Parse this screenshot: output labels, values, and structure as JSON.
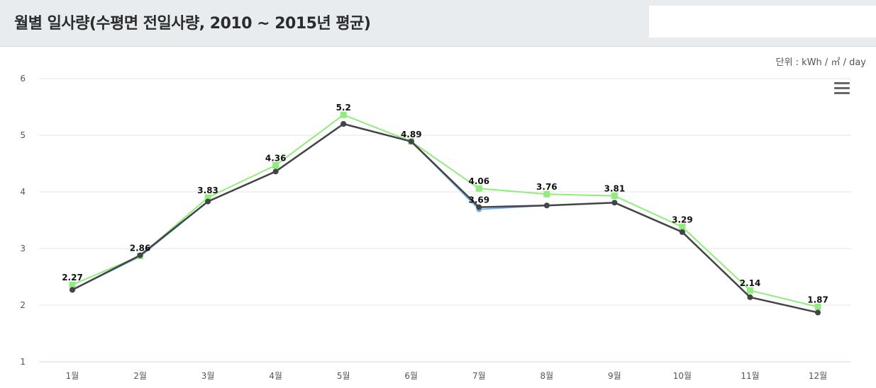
{
  "header": {
    "title": "월별 일사량(수평면 전일사량, 2010 ~ 2015년 평균)"
  },
  "unit_label": "단위 : kWh / ㎡ / day",
  "menu": {
    "icon": "hamburger-menu-icon"
  },
  "colors": {
    "grid": "#e6e6e6",
    "axis_line": "#ccd6eb",
    "series_dark": "#434348",
    "series_blue": "#7cb5ec",
    "series_green": "#90ed7d"
  },
  "chart_data": {
    "type": "line",
    "categories": [
      "1월",
      "2월",
      "3월",
      "4월",
      "5월",
      "6월",
      "7월",
      "8월",
      "9월",
      "10월",
      "11월",
      "12월"
    ],
    "series": [
      {
        "values": [
          2.27,
          2.86,
          3.83,
          4.36,
          5.2,
          4.89,
          3.69,
          3.76,
          3.81,
          3.29,
          2.14,
          1.87
        ],
        "color": "#7cb5ec",
        "marker": "circle"
      },
      {
        "values": [
          2.36,
          2.87,
          3.9,
          4.47,
          5.36,
          4.89,
          4.06,
          3.96,
          3.93,
          3.38,
          2.26,
          1.97
        ],
        "color": "#90ed7d",
        "marker": "square"
      },
      {
        "values": [
          2.27,
          2.88,
          3.83,
          4.36,
          5.2,
          4.89,
          3.73,
          3.76,
          3.81,
          3.29,
          2.14,
          1.87
        ],
        "color": "#434348",
        "marker": "circle"
      }
    ],
    "data_labels": [
      "2.27",
      "2.86",
      "3.83",
      "4.36",
      "5.2",
      "4.89",
      "4.06",
      "3.76",
      "3.81",
      "3.29",
      "2.14",
      "1.87"
    ],
    "extra_label": "3.69",
    "ylim": [
      1,
      6
    ],
    "yticks": [
      1,
      2,
      3,
      4,
      5,
      6
    ],
    "grid": true,
    "legend": "none"
  }
}
